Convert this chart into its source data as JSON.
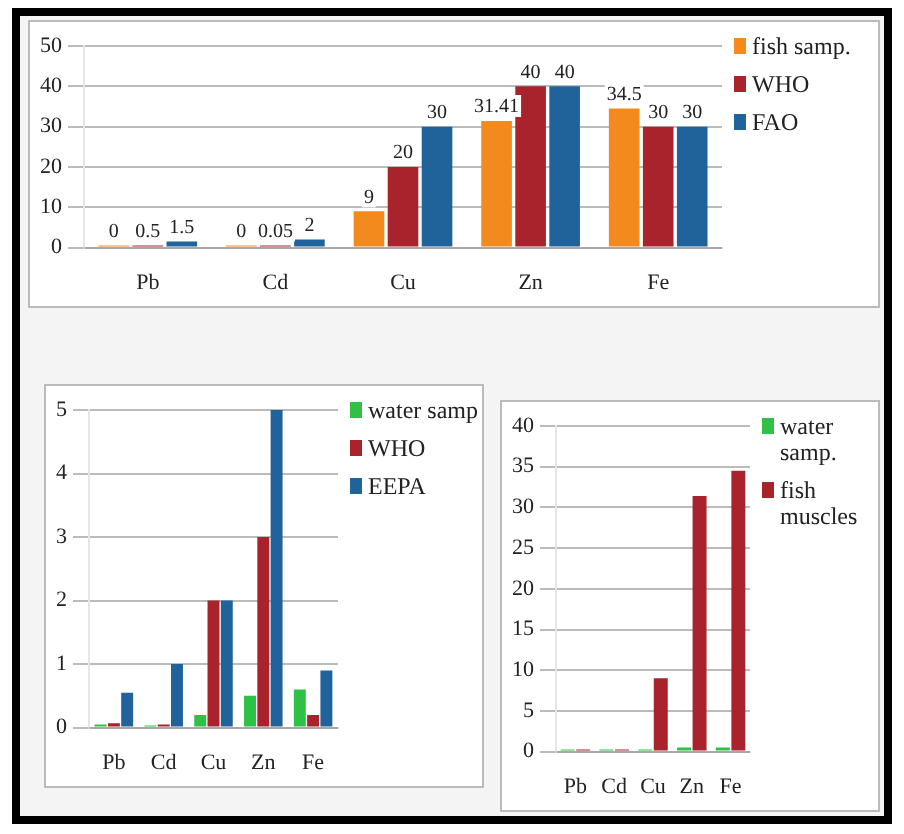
{
  "chart_data": [
    {
      "type": "bar",
      "categories": [
        "Pb",
        "Cd",
        "Cu",
        "Zn",
        "Fe"
      ],
      "series": [
        {
          "name": "fish samp.",
          "color": "#f28a1e",
          "values": [
            0,
            0,
            9,
            31.41,
            34.5
          ]
        },
        {
          "name": "WHO",
          "color": "#a8232c",
          "values": [
            0.5,
            0.05,
            20,
            40,
            30
          ]
        },
        {
          "name": "FAO",
          "color": "#20639b",
          "values": [
            1.5,
            2,
            30,
            40,
            30
          ]
        }
      ],
      "ylim": [
        0,
        50
      ],
      "yticks": [
        0,
        10,
        20,
        30,
        40,
        50
      ],
      "grid": "y",
      "legend": "top right",
      "data_labels": true
    },
    {
      "type": "bar",
      "categories": [
        "Pb",
        "Cd",
        "Cu",
        "Zn",
        "Fe"
      ],
      "series": [
        {
          "name": "water samp",
          "color": "#2fc145",
          "values": [
            0.05,
            0.03,
            0.2,
            0.5,
            0.6
          ]
        },
        {
          "name": "WHO",
          "color": "#a8232c",
          "values": [
            0.07,
            0.05,
            2,
            3,
            0.2
          ]
        },
        {
          "name": "EEPA",
          "color": "#20639b",
          "values": [
            0.55,
            1,
            2,
            5,
            0.9
          ]
        }
      ],
      "ylim": [
        0,
        5
      ],
      "yticks": [
        0,
        1,
        2,
        3,
        4,
        5
      ],
      "grid": "y",
      "legend": "top right"
    },
    {
      "type": "bar",
      "categories": [
        "Pb",
        "Cd",
        "Cu",
        "Zn",
        "Fe"
      ],
      "series": [
        {
          "name": "water samp.",
          "color": "#2fc145",
          "values": [
            0,
            0,
            0,
            0.5,
            0.5
          ]
        },
        {
          "name": "fish muscles",
          "color": "#a8232c",
          "values": [
            0,
            0,
            9,
            31.4,
            34.5
          ]
        }
      ],
      "ylim": [
        0,
        40
      ],
      "yticks": [
        0,
        5,
        10,
        15,
        20,
        25,
        30,
        35,
        40
      ],
      "grid": "y",
      "legend": "top right"
    }
  ]
}
